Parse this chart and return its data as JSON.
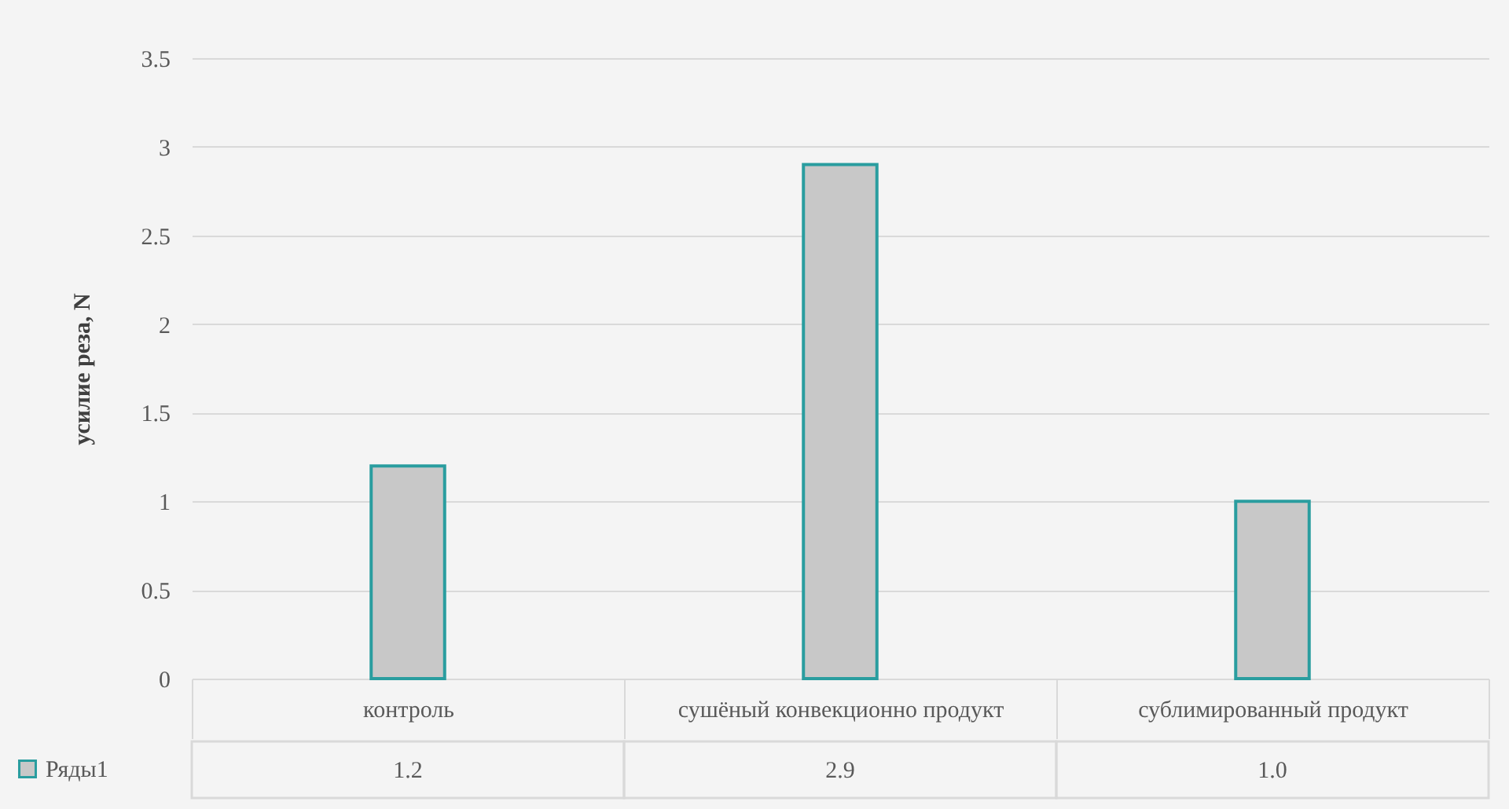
{
  "chart_data": {
    "type": "bar",
    "ylabel": "усилие реза, N",
    "categories": [
      "контроль",
      "сушёный конвекционно продукт",
      "сублимированный продукт"
    ],
    "series": [
      {
        "name": "Ряды1",
        "color": "#c8c8c8",
        "values": [
          1.2,
          2.9,
          1.0
        ],
        "value_labels": [
          "1.2",
          "2.9",
          "1.0"
        ]
      }
    ],
    "ylim": [
      0,
      3.5
    ],
    "yticks": [
      0,
      0.5,
      1,
      1.5,
      2,
      2.5,
      3,
      3.5
    ],
    "grid": "y",
    "legend": "bottom left"
  }
}
